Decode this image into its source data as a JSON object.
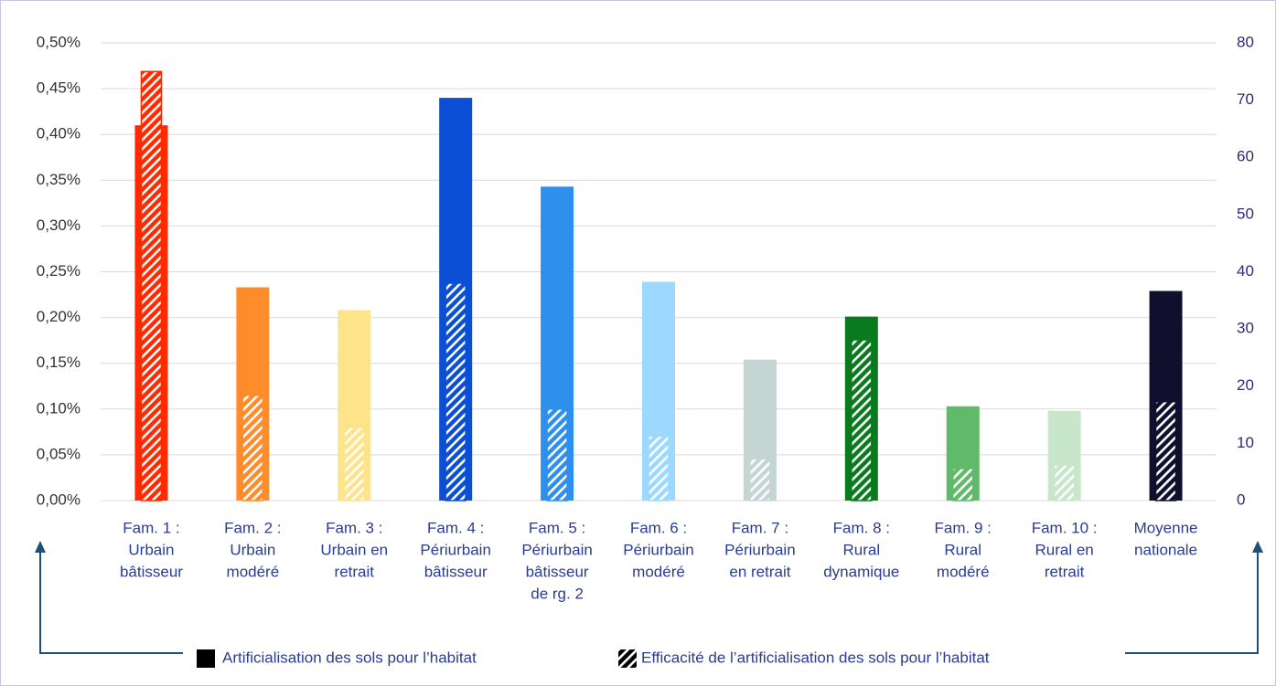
{
  "chart_data": {
    "type": "bar",
    "categories": [
      [
        "Fam. 1 :",
        "Urbain",
        "bâtisseur"
      ],
      [
        "Fam. 2 :",
        "Urbain",
        "modéré"
      ],
      [
        "Fam. 3 :",
        "Urbain en",
        "retrait"
      ],
      [
        "Fam. 4 :",
        "Périurbain",
        "bâtisseur"
      ],
      [
        "Fam. 5 :",
        "Périurbain",
        "bâtisseur",
        "de rg. 2"
      ],
      [
        "Fam. 6 :",
        "Périurbain",
        "modéré"
      ],
      [
        "Fam. 7 :",
        "Périurbain",
        "en retrait"
      ],
      [
        "Fam. 8 :",
        "Rural",
        "dynamique"
      ],
      [
        "Fam. 9 :",
        "Rural",
        "modéré"
      ],
      [
        "Fam. 10 :",
        "Rural en",
        "retrait"
      ],
      [
        "Moyenne",
        "nationale"
      ]
    ],
    "series": [
      {
        "name": "Artificialisation des sols pour l’habitat",
        "color": "#000000",
        "colors": [
          "#ff2a00",
          "#ff8c2a",
          "#fde38a",
          "#0a4fd6",
          "#2f8fed",
          "#9dd8ff",
          "#c5d5d3",
          "#0a7a1f",
          "#5fba6a",
          "#c8e6c9",
          "#10102e"
        ],
        "values": [
          0.41,
          0.233,
          0.208,
          0.44,
          0.343,
          0.239,
          0.154,
          0.201,
          0.103,
          0.098,
          0.229
        ]
      },
      {
        "name": "Efficacité de l’artificialisation des sols pour l’habitat",
        "color": "#000000",
        "hatched": true,
        "axis": "y2",
        "colors": [
          "#ff2a00",
          "#ff8c2a",
          "#fde38a",
          "#0a4fd6",
          "#2f8fed",
          "#9dd8ff",
          "#c5d5d3",
          "#0a7a1f",
          "#5fba6a",
          "#c8e6c9",
          "#10102e"
        ],
        "values": [
          75,
          18.4,
          12.8,
          38,
          16,
          11.3,
          7.3,
          28.1,
          5.6,
          6.2,
          17.3
        ]
      }
    ],
    "ylim": [
      0,
      0.5
    ],
    "yticks": [
      {
        "value": 0,
        "label": "0,00%"
      },
      {
        "value": 0.05,
        "label": "0,05%"
      },
      {
        "value": 0.1,
        "label": "0,10%"
      },
      {
        "value": 0.15,
        "label": "0,15%"
      },
      {
        "value": 0.2,
        "label": "0,20%"
      },
      {
        "value": 0.25,
        "label": "0,25%"
      },
      {
        "value": 0.3,
        "label": "0,30%"
      },
      {
        "value": 0.35,
        "label": "0,35%"
      },
      {
        "value": 0.4,
        "label": "0,40%"
      },
      {
        "value": 0.45,
        "label": "0,45%"
      },
      {
        "value": 0.5,
        "label": "0,50%"
      }
    ],
    "y2lim": [
      0,
      80
    ],
    "y2ticks": [
      0,
      10,
      20,
      30,
      40,
      50,
      60,
      70,
      80
    ],
    "grid": true
  }
}
